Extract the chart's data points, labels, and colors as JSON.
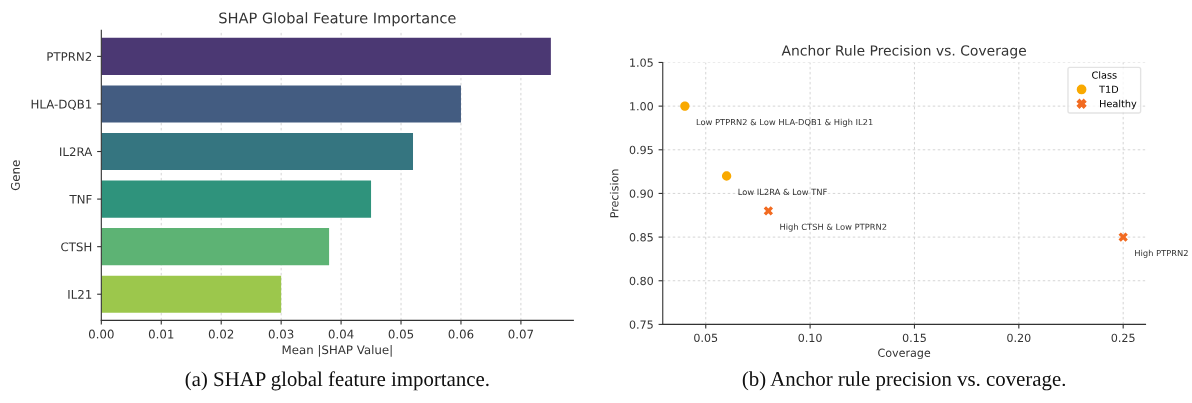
{
  "chart_data": [
    {
      "type": "bar",
      "orientation": "horizontal",
      "title": "SHAP Global Feature Importance",
      "xlabel": "Mean |SHAP Value|",
      "ylabel": "Gene",
      "categories": [
        "PTPRN2",
        "HLA-DQB1",
        "IL2RA",
        "TNF",
        "CTSH",
        "IL21"
      ],
      "values": [
        0.075,
        0.06,
        0.052,
        0.045,
        0.038,
        0.03
      ],
      "colors": [
        "#4b3873",
        "#435c81",
        "#357580",
        "#2f937c",
        "#5db374",
        "#9cc74c"
      ],
      "xlim": [
        0,
        0.07875
      ],
      "xticks": [
        {
          "value": 0,
          "label": "0.00"
        },
        0.01,
        0.02,
        0.03,
        0.04,
        0.05,
        0.06,
        0.07
      ],
      "grid": "x",
      "legend": false,
      "annotations": [
        "(a) SHAP global feature importance."
      ]
    },
    {
      "type": "scatter",
      "title": "Anchor Rule Precision vs. Coverage",
      "xlabel": "Coverage",
      "ylabel": "Precision",
      "legend_title": "Class",
      "series": [
        {
          "name": "T1D",
          "color": "#f9a900",
          "marker": "circle",
          "x": [
            0.04,
            0.06
          ],
          "values": [
            1.0,
            0.92
          ]
        },
        {
          "name": "Healthy",
          "color": "#f26b21",
          "marker": "cross",
          "x": [
            0.08,
            0.25
          ],
          "values": [
            0.88,
            0.85
          ]
        }
      ],
      "xlim": [
        0.0294,
        0.2607
      ],
      "xticks": [
        0.05,
        {
          "value": 0.1,
          "label": "0.10"
        },
        0.15,
        {
          "value": 0.2,
          "label": "0.20"
        },
        0.25
      ],
      "ylim": [
        0.75,
        1.05
      ],
      "yticks": [
        {
          "value": 0.75,
          "label": "0.75"
        },
        {
          "value": 0.8,
          "label": "0.80"
        },
        {
          "value": 0.85,
          "label": "0.85"
        },
        {
          "value": 0.9,
          "label": "0.90"
        },
        {
          "value": 0.95,
          "label": "0.95"
        },
        {
          "value": 1.0,
          "label": "1.00"
        },
        {
          "value": 1.05,
          "label": "1.05"
        }
      ],
      "grid": true,
      "legend": "top right",
      "annotations": [
        {
          "text": "Low PTPRN2 & Low HLA-DQB1 & High IL21",
          "x": 0.04,
          "y": 1.0
        },
        {
          "text": "Low IL2RA & Low TNF",
          "x": 0.06,
          "y": 0.92
        },
        {
          "text": "High CTSH & Low PTPRN2",
          "x": 0.08,
          "y": 0.88
        },
        {
          "text": "High PTPRN2",
          "x": 0.25,
          "y": 0.85
        },
        "(b) Anchor rule precision vs. coverage."
      ]
    }
  ]
}
